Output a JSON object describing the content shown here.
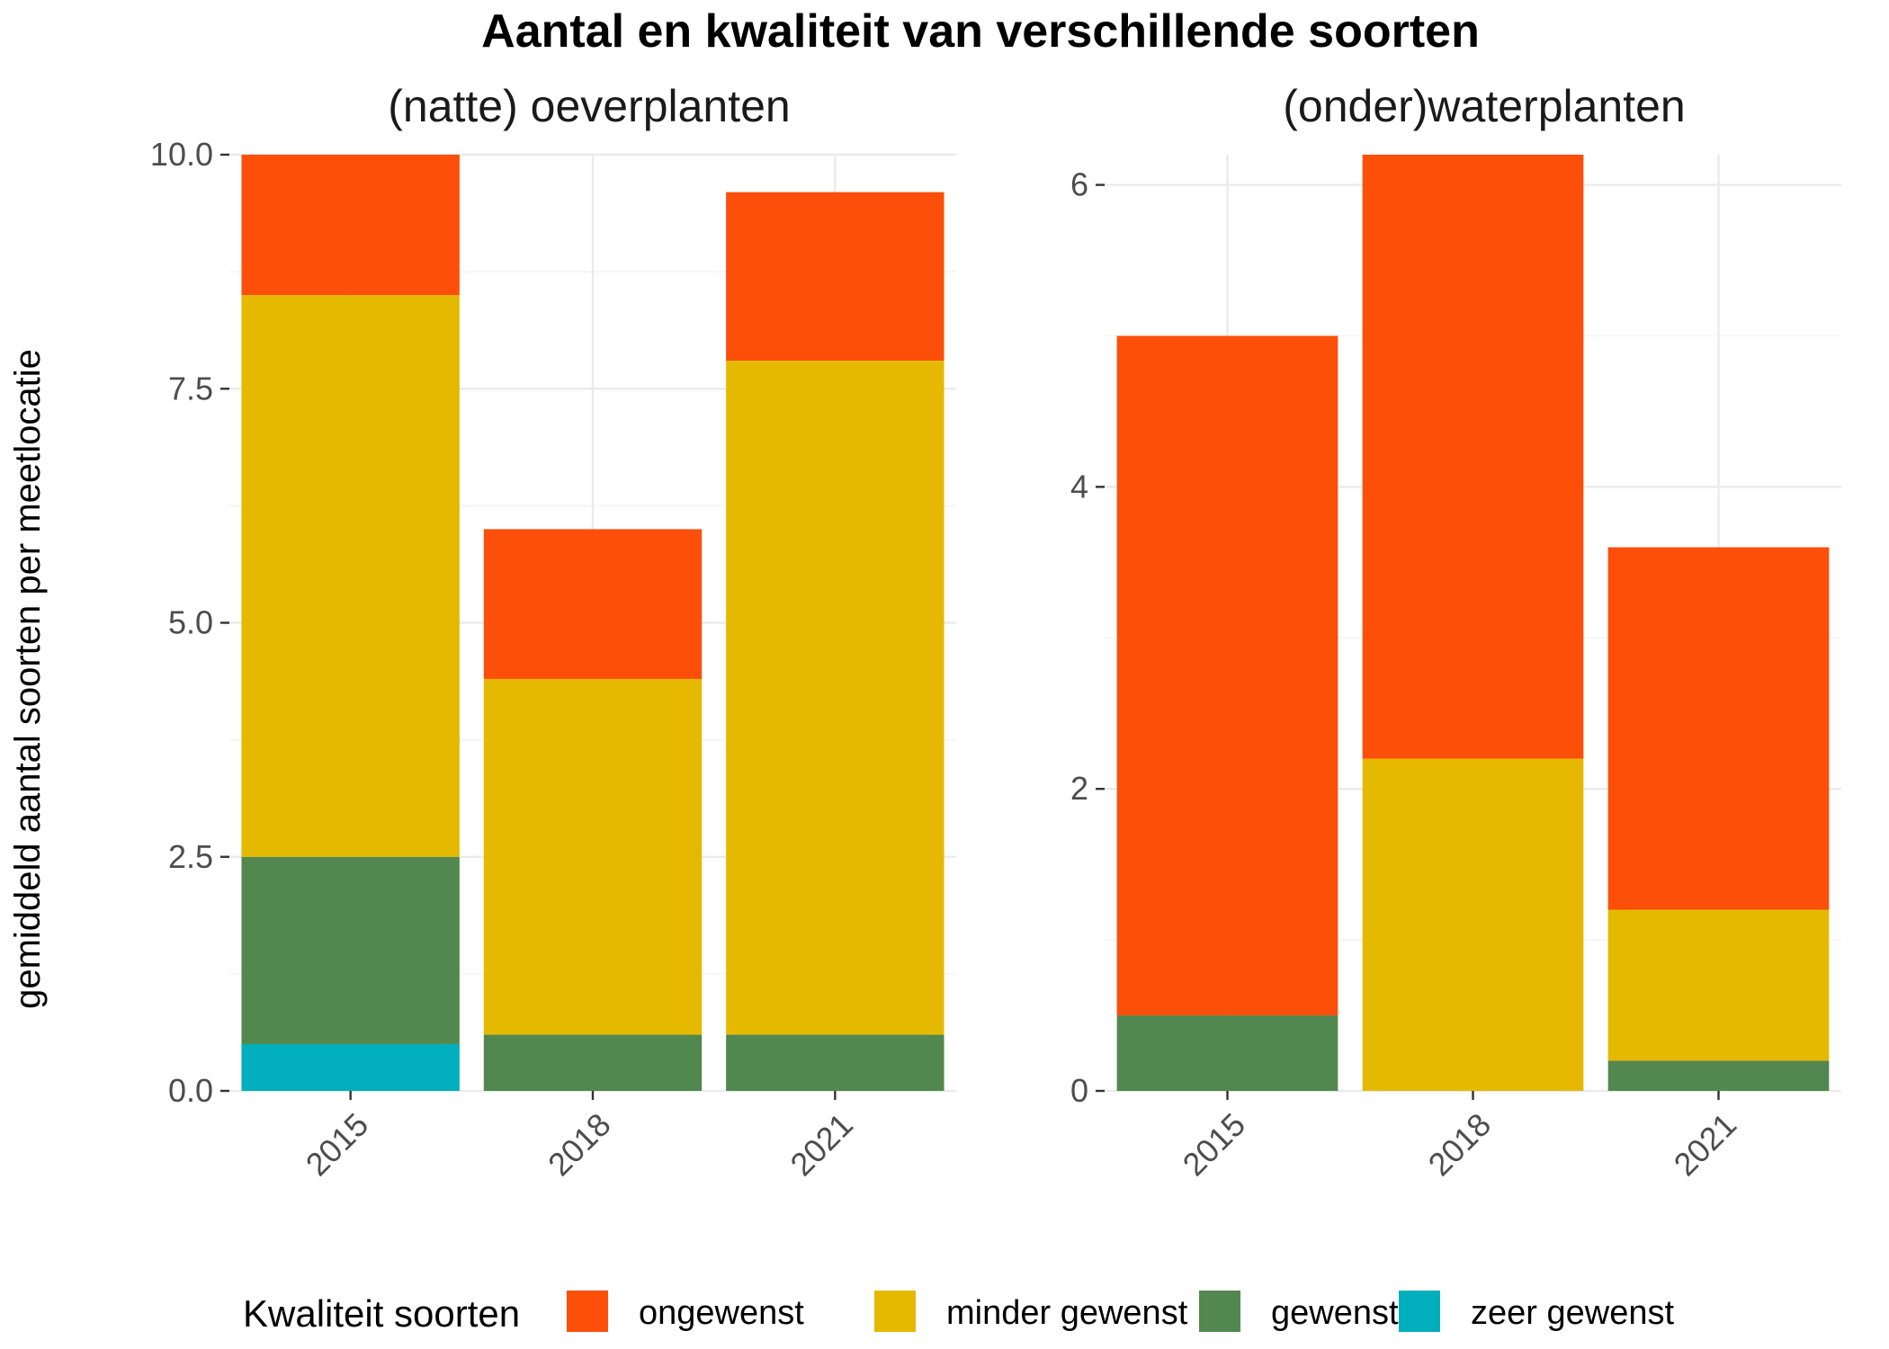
{
  "title": "Aantal en kwaliteit van verschillende soorten",
  "ylabel": "gemiddeld aantal soorten per meetlocatie",
  "legend": {
    "title": "Kwaliteit soorten",
    "position": "bottom",
    "items": [
      {
        "label": "ongewenst",
        "color": "#FC4F0A"
      },
      {
        "label": "minder gewenst",
        "color": "#E5B900"
      },
      {
        "label": "gewenst",
        "color": "#52884F"
      },
      {
        "label": "zeer gewenst",
        "color": "#00AFBB"
      }
    ]
  },
  "chart_data": [
    {
      "type": "bar",
      "stacked": true,
      "title": "(natte) oeverplanten",
      "categories": [
        "2015",
        "2018",
        "2021"
      ],
      "ylim": [
        0,
        10
      ],
      "yticks": [
        0,
        2.5,
        5,
        7.5,
        10
      ],
      "ytick_labels": [
        "0.0",
        "2.5",
        "5.0",
        "7.5",
        "10.0"
      ],
      "grid": true,
      "series": [
        {
          "name": "zeer gewenst",
          "color": "#00AFBB",
          "values": [
            0.5,
            0,
            0
          ]
        },
        {
          "name": "gewenst",
          "color": "#52884F",
          "values": [
            2.0,
            0.6,
            0.6
          ]
        },
        {
          "name": "minder gewenst",
          "color": "#E5B900",
          "values": [
            6.0,
            3.8,
            7.2
          ]
        },
        {
          "name": "ongewenst",
          "color": "#FC4F0A",
          "values": [
            1.5,
            1.6,
            1.8
          ]
        }
      ]
    },
    {
      "type": "bar",
      "stacked": true,
      "title": "(onder)waterplanten",
      "categories": [
        "2015",
        "2018",
        "2021"
      ],
      "ylim": [
        0,
        6.2
      ],
      "yticks": [
        0,
        2,
        4,
        6
      ],
      "ytick_labels": [
        "0",
        "2",
        "4",
        "6"
      ],
      "grid": true,
      "series": [
        {
          "name": "zeer gewenst",
          "color": "#00AFBB",
          "values": [
            0,
            0,
            0
          ]
        },
        {
          "name": "gewenst",
          "color": "#52884F",
          "values": [
            0.5,
            0,
            0.2
          ]
        },
        {
          "name": "minder gewenst",
          "color": "#E5B900",
          "values": [
            0,
            2.2,
            1.0
          ]
        },
        {
          "name": "ongewenst",
          "color": "#FC4F0A",
          "values": [
            4.5,
            4.0,
            2.4
          ]
        }
      ]
    }
  ]
}
